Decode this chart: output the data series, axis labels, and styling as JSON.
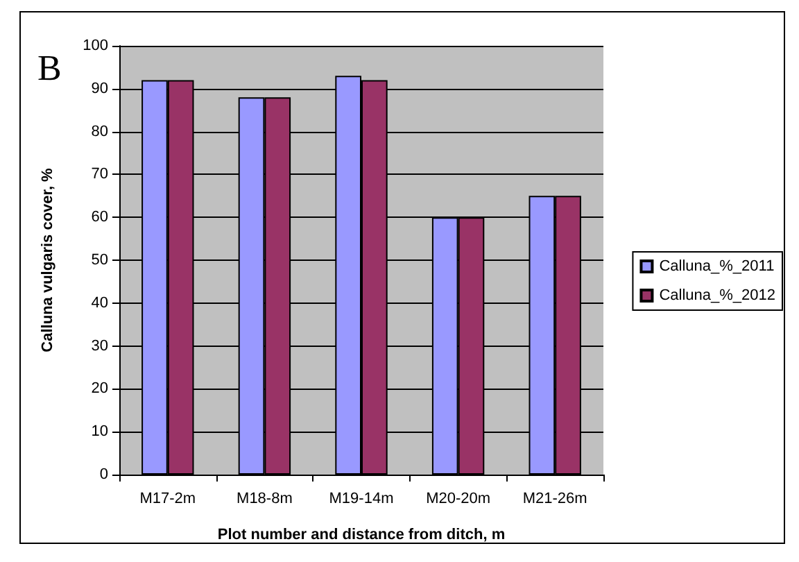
{
  "chart_data": {
    "type": "bar",
    "xlabel": "Plot number and distance from ditch, m",
    "ylabel": "Calluna vulgaris cover, %",
    "annotations": [
      "B"
    ],
    "categories": [
      "M17-2m",
      "M18-8m",
      "M19-14m",
      "M20-20m",
      "M21-26m"
    ],
    "series": [
      {
        "name": "Calluna_%_2011",
        "color": "#9999ff",
        "values": [
          92,
          88,
          93,
          60,
          65
        ]
      },
      {
        "name": "Calluna_%_2012",
        "color": "#993366",
        "values": [
          92,
          88,
          92,
          60,
          65
        ]
      }
    ],
    "ylim": [
      0,
      100
    ],
    "yticks": [
      0,
      10,
      20,
      30,
      40,
      50,
      60,
      70,
      80,
      90,
      100
    ],
    "grid": "y",
    "legend": "right"
  }
}
